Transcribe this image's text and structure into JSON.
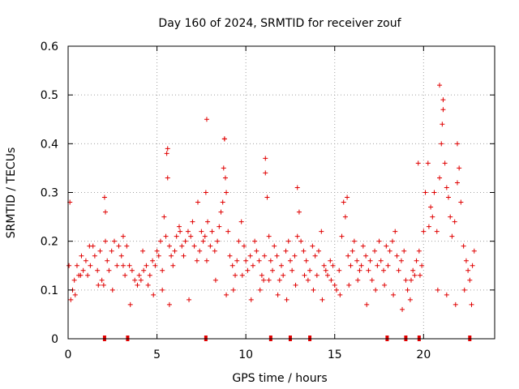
{
  "chart_data": {
    "type": "scatter",
    "title": "Day 160 of 2024, SRMTID for receiver zouf",
    "xlabel": "GPS time / hours",
    "ylabel": "SRMTID / TECUs",
    "xlim": [
      0,
      24
    ],
    "ylim": [
      0,
      0.6
    ],
    "xticks": [
      0,
      5,
      10,
      15,
      20
    ],
    "xtick_labels": [
      "0",
      "5",
      "10",
      "15",
      "20"
    ],
    "yticks": [
      0,
      0.1,
      0.2,
      0.3,
      0.4,
      0.5,
      0.6
    ],
    "ytick_labels": [
      "0",
      "0.1",
      "0.2",
      "0.3",
      "0.4",
      "0.5",
      "0.6"
    ],
    "grid": true,
    "marker": "+",
    "color": "#e00000",
    "series": [
      {
        "name": "SRMTID",
        "x": [
          0.05,
          0.15,
          0.25,
          0.35,
          0.5,
          0.6,
          0.75,
          0.85,
          1.0,
          1.1,
          1.25,
          1.4,
          1.5,
          1.65,
          1.8,
          1.9,
          2.0,
          2.05,
          2.2,
          2.3,
          2.45,
          2.6,
          2.75,
          2.85,
          3.0,
          3.1,
          3.2,
          3.3,
          3.45,
          3.6,
          3.75,
          3.9,
          4.0,
          4.1,
          4.25,
          4.4,
          4.5,
          4.6,
          4.75,
          4.9,
          5.0,
          5.1,
          5.2,
          5.3,
          5.4,
          5.5,
          5.55,
          5.6,
          5.7,
          5.8,
          5.9,
          6.0,
          6.1,
          6.25,
          6.4,
          6.5,
          6.6,
          6.75,
          6.9,
          7.0,
          7.1,
          7.25,
          7.4,
          7.5,
          7.6,
          7.7,
          7.75,
          7.85,
          8.0,
          8.1,
          8.25,
          8.4,
          8.5,
          8.6,
          8.7,
          8.75,
          8.8,
          8.85,
          8.9,
          9.0,
          9.1,
          9.25,
          9.4,
          9.5,
          9.6,
          9.75,
          9.9,
          10.0,
          10.1,
          10.25,
          10.4,
          10.5,
          10.6,
          10.75,
          10.9,
          11.0,
          11.05,
          11.1,
          11.2,
          11.3,
          11.4,
          11.5,
          11.6,
          11.75,
          11.9,
          12.0,
          12.1,
          12.25,
          12.4,
          12.5,
          12.6,
          12.75,
          12.9,
          13.0,
          13.1,
          13.25,
          13.4,
          13.5,
          13.6,
          13.75,
          13.9,
          14.0,
          14.1,
          14.25,
          14.4,
          14.5,
          14.6,
          14.75,
          14.9,
          15.0,
          15.1,
          15.25,
          15.4,
          15.5,
          15.6,
          15.75,
          15.9,
          16.0,
          16.1,
          16.25,
          16.4,
          16.5,
          16.6,
          16.75,
          16.9,
          17.0,
          17.1,
          17.25,
          17.4,
          17.5,
          17.6,
          17.75,
          17.9,
          18.0,
          18.1,
          18.25,
          18.4,
          18.5,
          18.6,
          18.75,
          18.9,
          19.0,
          19.1,
          19.25,
          19.4,
          19.5,
          19.6,
          19.75,
          19.9,
          20.0,
          20.1,
          20.25,
          20.4,
          20.5,
          20.6,
          20.75,
          20.9,
          21.0,
          21.05,
          21.1,
          21.2,
          21.3,
          21.4,
          21.5,
          21.6,
          21.75,
          21.9,
          22.0,
          22.1,
          22.25,
          22.4,
          22.5,
          22.6,
          22.75,
          22.85,
          0.1,
          0.4,
          0.7,
          1.2,
          1.7,
          2.1,
          2.5,
          3.1,
          3.5,
          4.2,
          4.8,
          5.3,
          5.7,
          6.3,
          6.8,
          7.3,
          7.8,
          8.3,
          8.9,
          9.3,
          9.8,
          10.3,
          10.8,
          11.3,
          11.8,
          12.3,
          12.8,
          13.3,
          13.8,
          14.3,
          14.8,
          15.3,
          15.8,
          16.3,
          16.8,
          17.3,
          17.8,
          18.3,
          18.8,
          19.3,
          19.8,
          20.3,
          20.8,
          21.3,
          21.8,
          22.3,
          22.7,
          2.1,
          5.6,
          7.8,
          8.8,
          11.1,
          12.9,
          15.7,
          19.7,
          20.9,
          21.1,
          21.9
        ],
        "y": [
          0.15,
          0.08,
          0.1,
          0.12,
          0.15,
          0.13,
          0.17,
          0.14,
          0.16,
          0.13,
          0.15,
          0.19,
          0.17,
          0.14,
          0.18,
          0.12,
          0.11,
          0.29,
          0.16,
          0.14,
          0.18,
          0.2,
          0.15,
          0.19,
          0.17,
          0.21,
          0.13,
          0.19,
          0.15,
          0.14,
          0.12,
          0.11,
          0.13,
          0.12,
          0.14,
          0.15,
          0.11,
          0.13,
          0.16,
          0.15,
          0.18,
          0.17,
          0.2,
          0.14,
          0.25,
          0.21,
          0.38,
          0.33,
          0.19,
          0.17,
          0.15,
          0.18,
          0.21,
          0.23,
          0.19,
          0.17,
          0.2,
          0.22,
          0.21,
          0.24,
          0.19,
          0.16,
          0.18,
          0.22,
          0.2,
          0.21,
          0.3,
          0.24,
          0.19,
          0.22,
          0.18,
          0.2,
          0.23,
          0.26,
          0.28,
          0.35,
          0.41,
          0.33,
          0.3,
          0.22,
          0.17,
          0.15,
          0.13,
          0.16,
          0.2,
          0.24,
          0.19,
          0.16,
          0.14,
          0.17,
          0.15,
          0.2,
          0.18,
          0.16,
          0.13,
          0.12,
          0.17,
          0.34,
          0.29,
          0.21,
          0.16,
          0.14,
          0.19,
          0.17,
          0.12,
          0.15,
          0.13,
          0.18,
          0.2,
          0.16,
          0.14,
          0.17,
          0.21,
          0.26,
          0.2,
          0.18,
          0.16,
          0.12,
          0.14,
          0.19,
          0.17,
          0.13,
          0.18,
          0.22,
          0.15,
          0.14,
          0.13,
          0.16,
          0.15,
          0.11,
          0.1,
          0.14,
          0.21,
          0.28,
          0.25,
          0.17,
          0.15,
          0.18,
          0.2,
          0.16,
          0.14,
          0.15,
          0.19,
          0.17,
          0.14,
          0.16,
          0.12,
          0.18,
          0.15,
          0.2,
          0.16,
          0.14,
          0.19,
          0.15,
          0.18,
          0.2,
          0.22,
          0.17,
          0.14,
          0.16,
          0.18,
          0.12,
          0.1,
          0.08,
          0.14,
          0.13,
          0.16,
          0.18,
          0.15,
          0.22,
          0.3,
          0.36,
          0.27,
          0.25,
          0.3,
          0.22,
          0.33,
          0.4,
          0.44,
          0.47,
          0.36,
          0.31,
          0.29,
          0.25,
          0.21,
          0.24,
          0.32,
          0.35,
          0.28,
          0.19,
          0.16,
          0.14,
          0.12,
          0.15,
          0.18,
          0.28,
          0.09,
          0.13,
          0.19,
          0.11,
          0.2,
          0.1,
          0.15,
          0.07,
          0.18,
          0.09,
          0.1,
          0.07,
          0.22,
          0.08,
          0.28,
          0.16,
          0.12,
          0.09,
          0.1,
          0.13,
          0.08,
          0.1,
          0.12,
          0.09,
          0.08,
          0.11,
          0.13,
          0.1,
          0.08,
          0.12,
          0.09,
          0.11,
          0.12,
          0.07,
          0.1,
          0.11,
          0.09,
          0.06,
          0.12,
          0.13,
          0.23,
          0.1,
          0.09,
          0.07,
          0.1,
          0.07,
          0.26,
          0.39,
          0.45,
          0.41,
          0.37,
          0.31,
          0.29,
          0.36,
          0.52,
          0.49,
          0.4
        ]
      }
    ],
    "gap_markers_x": [
      2.05,
      3.35,
      7.75,
      11.4,
      12.5,
      13.6,
      17.95,
      19.0,
      19.75,
      22.6
    ]
  }
}
